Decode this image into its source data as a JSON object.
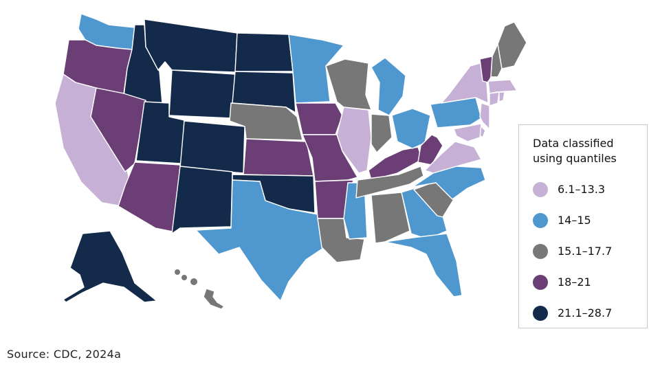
{
  "legend": {
    "title_line1": "Data classified",
    "title_line2": "using quantiles",
    "classes": [
      {
        "label": "6.1–13.3",
        "color": "#c6b0d6"
      },
      {
        "label": "14–15",
        "color": "#4f97cf"
      },
      {
        "label": "15.1–17.7",
        "color": "#777777"
      },
      {
        "label": "18–21",
        "color": "#6b3f76"
      },
      {
        "label": "21.1–28.7",
        "color": "#142a4a"
      }
    ]
  },
  "source": "Source: CDC, 2024a",
  "state_classes": {
    "WA": 1,
    "OR": 3,
    "CA": 0,
    "ID": 4,
    "NV": 3,
    "MT": 4,
    "WY": 4,
    "UT": 4,
    "AZ": 3,
    "CO": 4,
    "NM": 4,
    "ND": 4,
    "SD": 4,
    "NE": 2,
    "KS": 3,
    "OK": 4,
    "TX": 1,
    "MN": 1,
    "IA": 3,
    "MO": 3,
    "AR": 3,
    "LA": 2,
    "WI": 2,
    "IL": 0,
    "MS": 1,
    "MI": 1,
    "IN": 2,
    "KY": 3,
    "TN": 2,
    "AL": 2,
    "OH": 1,
    "WV": 3,
    "GA": 1,
    "FL": 1,
    "SC": 2,
    "NC": 1,
    "VA": 0,
    "PA": 1,
    "NY": 0,
    "VT": 3,
    "NH": 2,
    "ME": 2,
    "MA": 0,
    "CT": 0,
    "RI": 0,
    "NJ": 0,
    "DE": 0,
    "MD": 0,
    "AK": 4,
    "HI": 2
  }
}
